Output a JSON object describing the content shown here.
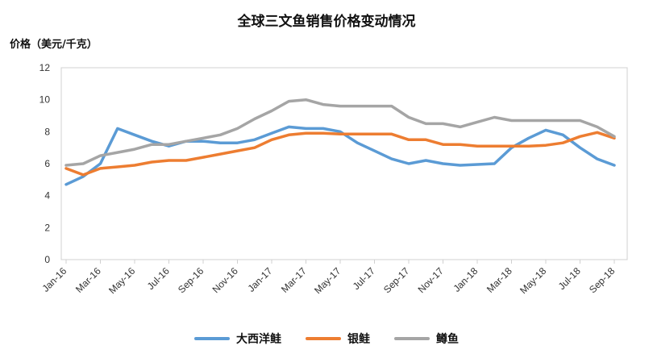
{
  "chart_data": {
    "type": "line",
    "title": "全球三文鱼销售价格变动情况",
    "ylabel": "价格（美元/千克）",
    "xlabel": "",
    "ylim": [
      0,
      12
    ],
    "yticks": [
      0,
      2,
      4,
      6,
      8,
      10,
      12
    ],
    "x": [
      "Jan-16",
      "Feb-16",
      "Mar-16",
      "Apr-16",
      "May-16",
      "Jun-16",
      "Jul-16",
      "Aug-16",
      "Sep-16",
      "Oct-16",
      "Nov-16",
      "Dec-16",
      "Jan-17",
      "Feb-17",
      "Mar-17",
      "Apr-17",
      "May-17",
      "Jun-17",
      "Jul-17",
      "Aug-17",
      "Sep-17",
      "Oct-17",
      "Nov-17",
      "Dec-17",
      "Jan-18",
      "Feb-18",
      "Mar-18",
      "Apr-18",
      "May-18",
      "Jun-18",
      "Jul-18",
      "Aug-18",
      "Sep-18"
    ],
    "xtick_labels": [
      "Jan-16",
      "Mar-16",
      "May-16",
      "Jul-16",
      "Sep-16",
      "Nov-16",
      "Jan-17",
      "Mar-17",
      "May-17",
      "Jul-17",
      "Sep-17",
      "Nov-17",
      "Jan-18",
      "Mar-18",
      "May-18",
      "Jul-18",
      "Sep-18"
    ],
    "grid": false,
    "legend_position": "bottom",
    "series": [
      {
        "name": "大西洋鲑",
        "color": "#5b9bd5",
        "values": [
          4.7,
          5.2,
          6.0,
          8.2,
          7.8,
          7.4,
          7.1,
          7.4,
          7.4,
          7.3,
          7.3,
          7.5,
          7.9,
          8.3,
          8.2,
          8.2,
          8.0,
          7.3,
          6.8,
          6.3,
          6.0,
          6.2,
          6.0,
          5.9,
          5.95,
          6.0,
          7.0,
          7.6,
          8.1,
          7.8,
          7.0,
          6.3,
          5.9
        ]
      },
      {
        "name": "银鲑",
        "color": "#ed7d31",
        "values": [
          5.7,
          5.3,
          5.7,
          5.8,
          5.9,
          6.1,
          6.2,
          6.2,
          6.4,
          6.6,
          6.8,
          7.0,
          7.5,
          7.8,
          7.9,
          7.9,
          7.85,
          7.85,
          7.85,
          7.85,
          7.5,
          7.5,
          7.2,
          7.2,
          7.1,
          7.1,
          7.1,
          7.1,
          7.15,
          7.3,
          7.7,
          7.95,
          7.6
        ]
      },
      {
        "name": "鳟鱼",
        "color": "#a5a5a5",
        "values": [
          5.9,
          6.0,
          6.5,
          6.7,
          6.9,
          7.2,
          7.2,
          7.4,
          7.6,
          7.8,
          8.2,
          8.8,
          9.3,
          9.9,
          10.0,
          9.7,
          9.6,
          9.6,
          9.6,
          9.6,
          8.9,
          8.5,
          8.5,
          8.3,
          8.6,
          8.9,
          8.7,
          8.7,
          8.7,
          8.7,
          8.7,
          8.3,
          7.7
        ]
      }
    ]
  }
}
